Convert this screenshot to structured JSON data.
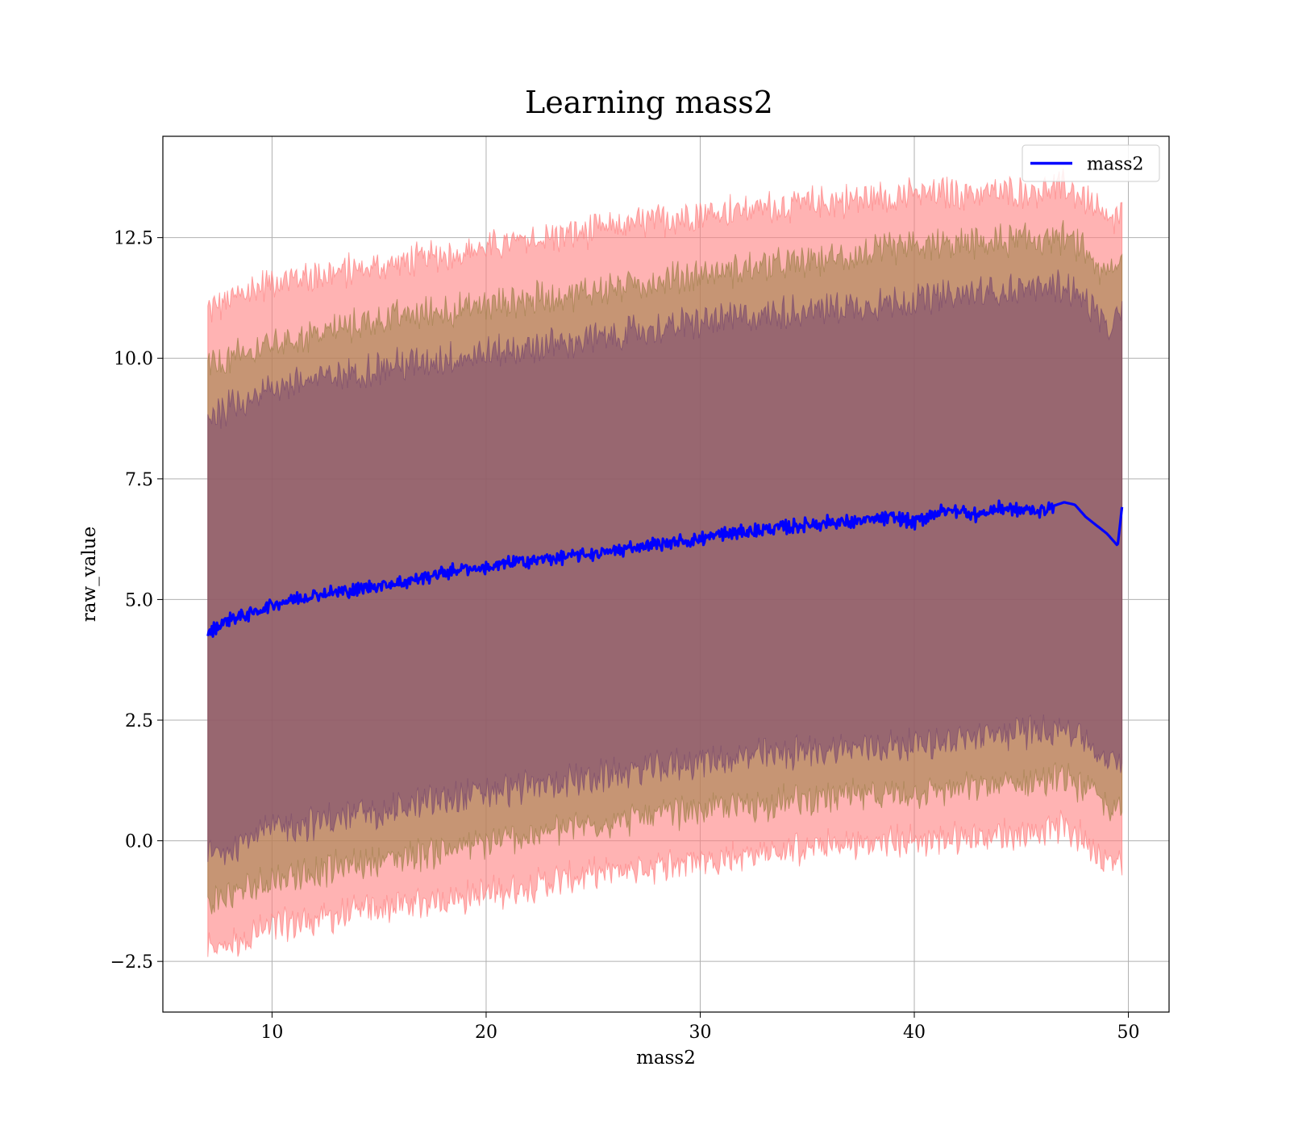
{
  "chart_data": {
    "type": "line",
    "title": "Learning mass2",
    "xlabel": "mass2",
    "ylabel": "raw_value",
    "xlim": [
      4.9,
      51.9
    ],
    "ylim": [
      -3.55,
      14.6
    ],
    "xticks": [
      10,
      20,
      30,
      40,
      50
    ],
    "xtick_labels": [
      "10",
      "20",
      "30",
      "40",
      "50"
    ],
    "yticks": [
      -2.5,
      0.0,
      2.5,
      5.0,
      7.5,
      10.0,
      12.5
    ],
    "ytick_labels": [
      "−2.5",
      "0.0",
      "2.5",
      "5.0",
      "7.5",
      "10.0",
      "12.5"
    ],
    "grid": true,
    "legend": {
      "position": "top-right",
      "entries": [
        "mass2"
      ]
    },
    "x_range": [
      7.0,
      49.7
    ],
    "series": [
      {
        "name": "mass2",
        "color": "#0000ff",
        "x": [
          7,
          8,
          9,
          10,
          11,
          12,
          13,
          14,
          15,
          16,
          17,
          18,
          19,
          20,
          21,
          22,
          23,
          24,
          25,
          26,
          27,
          28,
          29,
          30,
          31,
          32,
          33,
          34,
          35,
          36,
          37,
          38,
          39,
          40,
          41,
          42,
          43,
          44,
          45,
          46,
          47,
          47.5,
          48,
          49,
          49.5,
          49.7
        ],
        "y": [
          4.3,
          4.6,
          4.7,
          4.9,
          5.0,
          5.1,
          5.15,
          5.2,
          5.3,
          5.35,
          5.45,
          5.55,
          5.65,
          5.65,
          5.75,
          5.8,
          5.85,
          5.9,
          5.95,
          6.0,
          6.1,
          6.15,
          6.2,
          6.25,
          6.35,
          6.4,
          6.45,
          6.5,
          6.55,
          6.6,
          6.6,
          6.65,
          6.7,
          6.6,
          6.8,
          6.85,
          6.75,
          6.9,
          6.85,
          6.85,
          7.0,
          6.95,
          6.7,
          6.35,
          6.1,
          6.9
        ]
      }
    ],
    "bands": [
      {
        "name": "outer",
        "color": "#ff8080",
        "x": [
          7,
          10,
          15,
          20,
          25,
          30,
          35,
          40,
          45,
          47,
          48,
          49,
          49.7
        ],
        "upper": [
          11.0,
          11.6,
          11.9,
          12.3,
          12.65,
          13.0,
          13.2,
          13.4,
          13.45,
          13.55,
          13.3,
          12.8,
          13.0
        ],
        "lower": [
          -2.3,
          -1.8,
          -1.4,
          -1.1,
          -0.7,
          -0.4,
          -0.15,
          0.0,
          0.15,
          0.3,
          0.0,
          -0.4,
          -0.5
        ]
      },
      {
        "name": "middle",
        "color": "#a0804a",
        "x": [
          7,
          10,
          15,
          20,
          25,
          30,
          35,
          40,
          45,
          47,
          48,
          49,
          49.7
        ],
        "upper": [
          9.8,
          10.3,
          10.8,
          11.1,
          11.4,
          11.75,
          12.0,
          12.3,
          12.45,
          12.5,
          12.2,
          11.7,
          12.0
        ],
        "lower": [
          -1.3,
          -0.8,
          -0.4,
          -0.05,
          0.35,
          0.65,
          0.85,
          1.0,
          1.2,
          1.3,
          1.1,
          0.7,
          0.6
        ]
      },
      {
        "name": "inner",
        "color": "#7a4a6e",
        "x": [
          7,
          10,
          15,
          20,
          25,
          30,
          35,
          40,
          45,
          47,
          48,
          49,
          49.7
        ],
        "upper": [
          8.8,
          9.4,
          9.8,
          10.1,
          10.4,
          10.75,
          11.0,
          11.2,
          11.45,
          11.5,
          11.2,
          10.6,
          10.9
        ],
        "lower": [
          -0.3,
          0.25,
          0.6,
          1.0,
          1.3,
          1.65,
          1.85,
          2.0,
          2.25,
          2.35,
          2.1,
          1.6,
          1.7
        ]
      }
    ]
  }
}
